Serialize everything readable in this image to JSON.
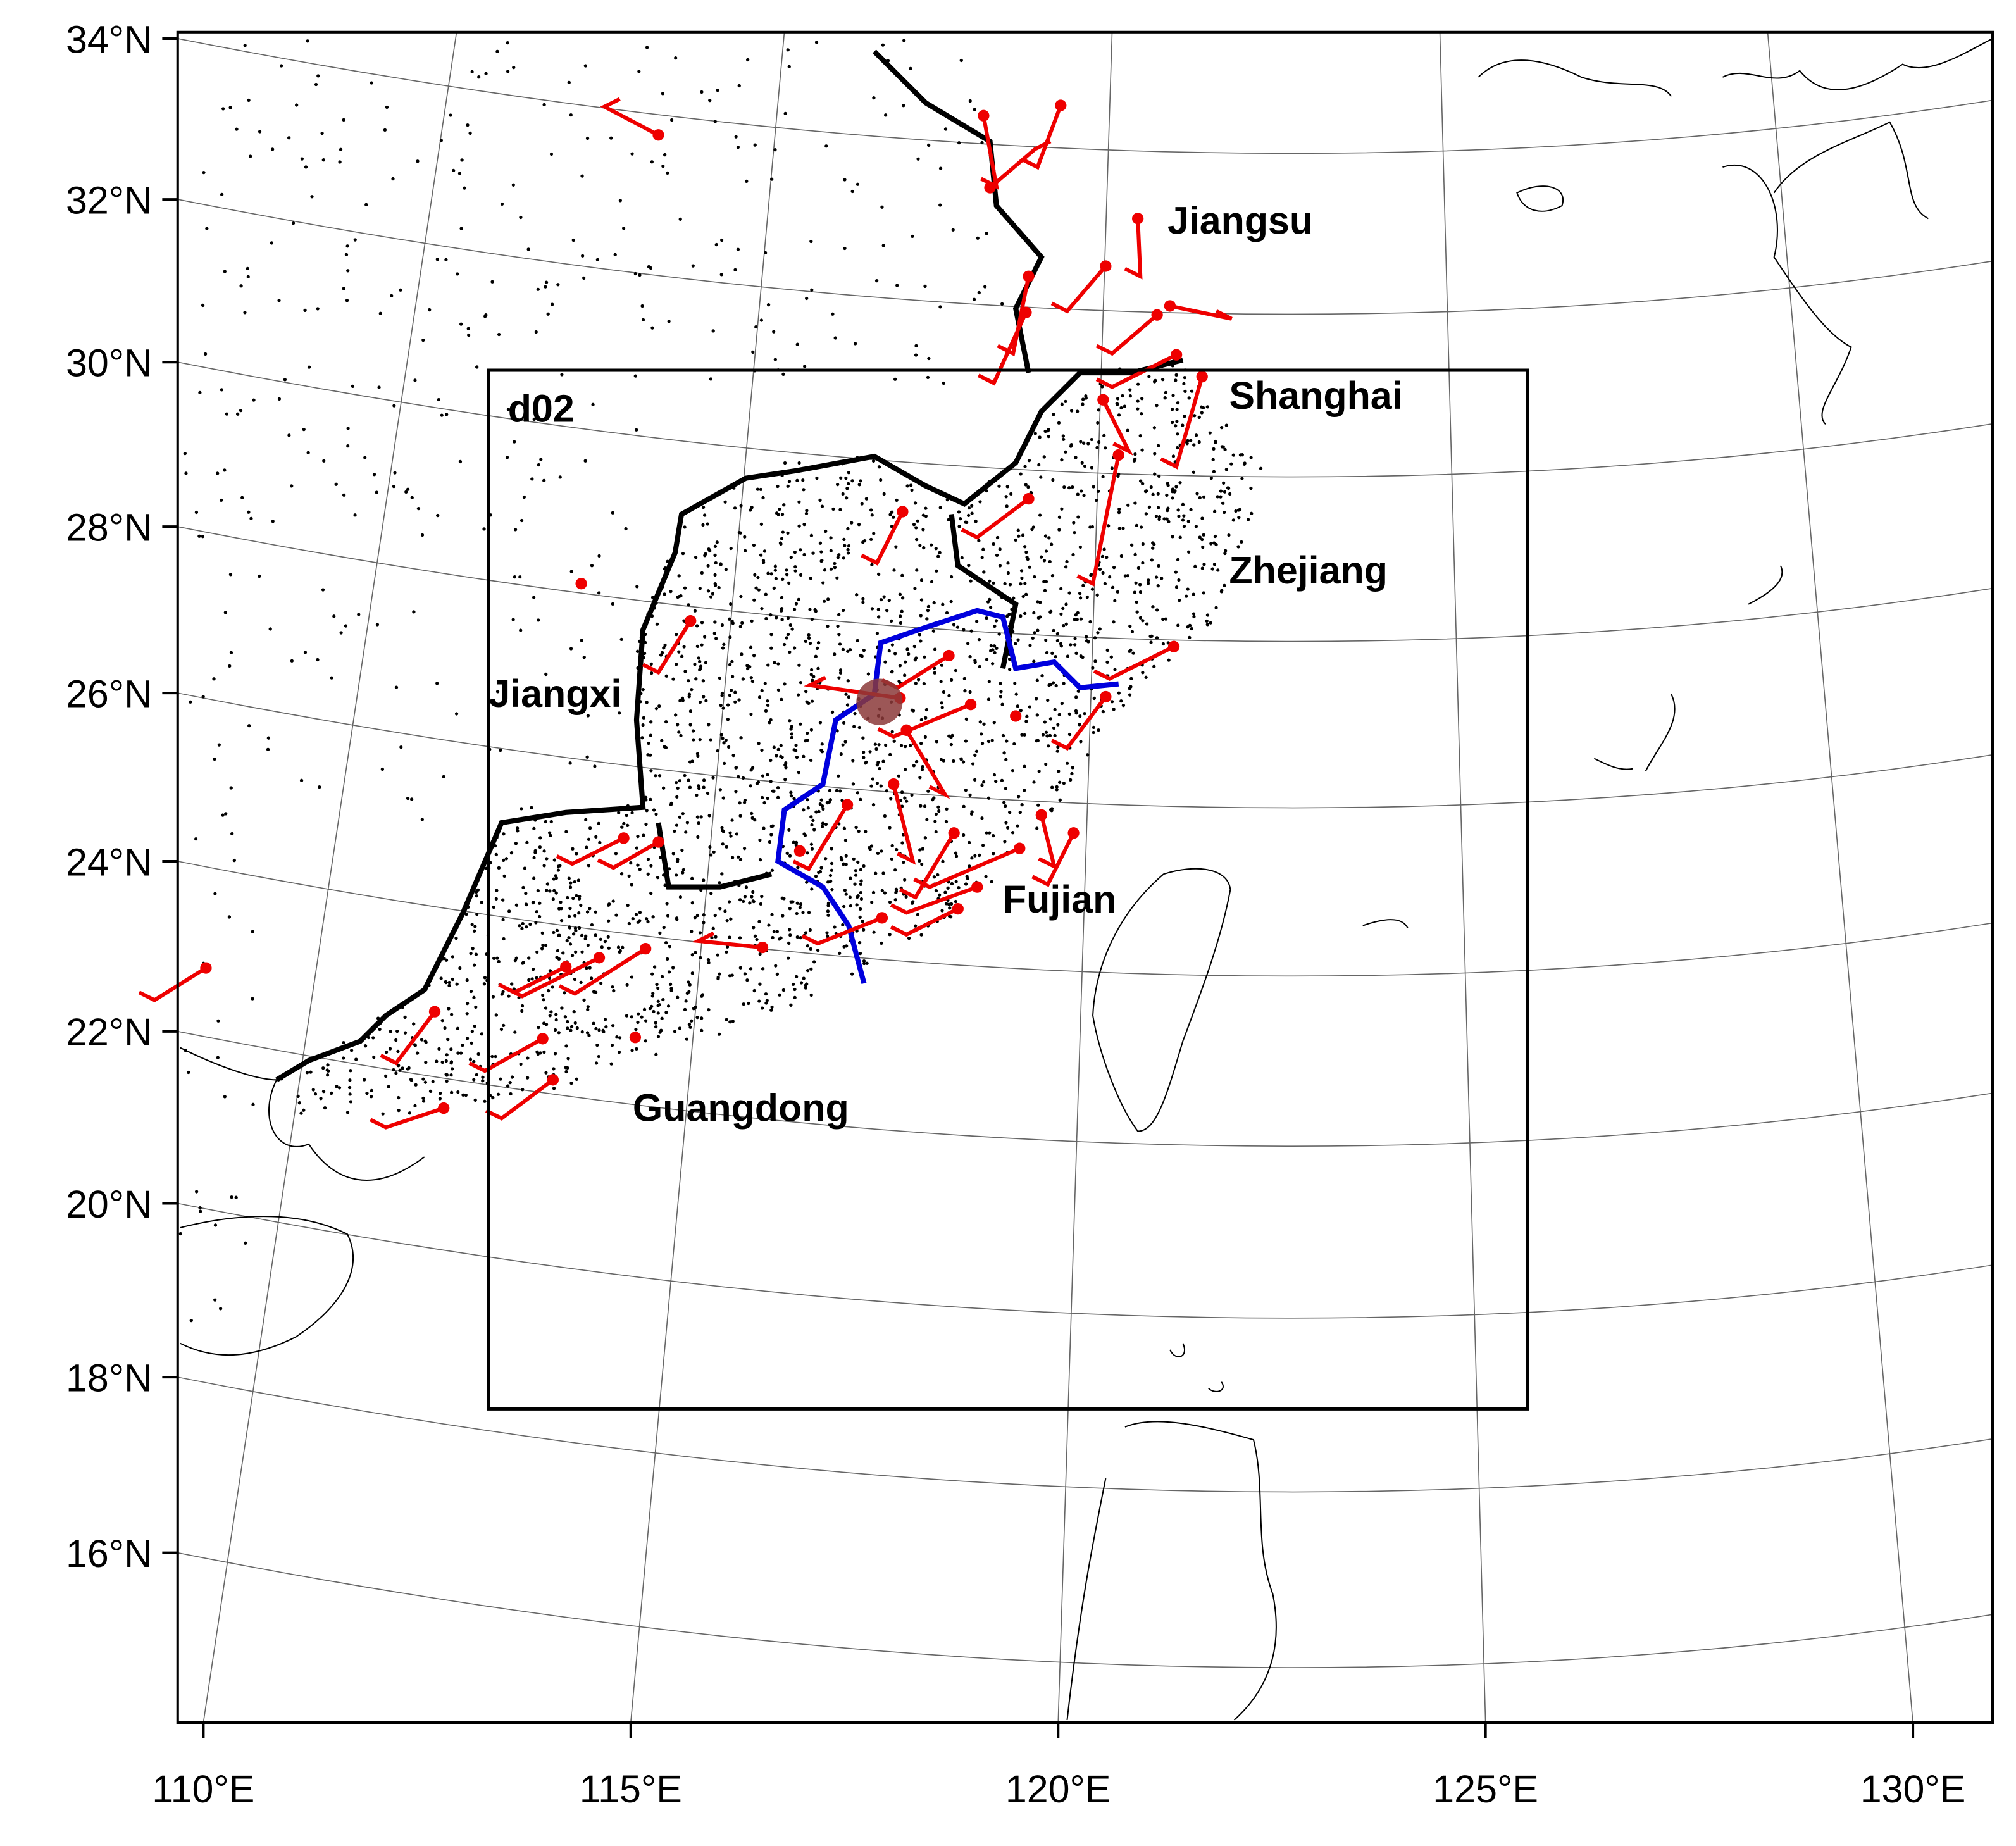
{
  "map": {
    "domain_label": "d02",
    "regions": [
      "Jiangsu",
      "Shanghai",
      "Zhejiang",
      "Jiangxi",
      "Fujian",
      "Guangdong"
    ],
    "lat_ticks": [
      {
        "value": 34,
        "label": "34°N"
      },
      {
        "value": 32,
        "label": "32°N"
      },
      {
        "value": 30,
        "label": "30°N"
      },
      {
        "value": 28,
        "label": "28°N"
      },
      {
        "value": 26,
        "label": "26°N"
      },
      {
        "value": 24,
        "label": "24°N"
      },
      {
        "value": 22,
        "label": "22°N"
      },
      {
        "value": 20,
        "label": "20°N"
      },
      {
        "value": 18,
        "label": "18°N"
      },
      {
        "value": 16,
        "label": "16°N"
      }
    ],
    "lon_ticks": [
      {
        "value": 110,
        "label": "110°E"
      },
      {
        "value": 115,
        "label": "115°E"
      },
      {
        "value": 120,
        "label": "120°E"
      },
      {
        "value": 125,
        "label": "125°E"
      },
      {
        "value": 130,
        "label": "130°E"
      }
    ]
  }
}
